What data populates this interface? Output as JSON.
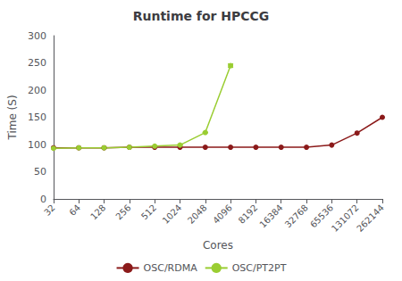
{
  "chart_data": {
    "type": "line",
    "title": "Runtime for HPCCG",
    "xlabel": "Cores",
    "ylabel": "Time (S)",
    "categories": [
      "32",
      "64",
      "128",
      "256",
      "512",
      "1024",
      "2048",
      "4096",
      "8192",
      "16384",
      "32768",
      "65536",
      "131072",
      "262144"
    ],
    "series": [
      {
        "name": "OSC/RDMA",
        "color": "#8B1A1A",
        "marker": "circle",
        "values": [
          94,
          94,
          94,
          95,
          95,
          95,
          95,
          95,
          95,
          95,
          95,
          99,
          121,
          150
        ]
      },
      {
        "name": "OSC/PT2PT",
        "color": "#9ACD32",
        "marker": "circle",
        "values": [
          93,
          94,
          94,
          95,
          97,
          99,
          122,
          245,
          null,
          null,
          null,
          null,
          null,
          null
        ],
        "errors": [
          0,
          0,
          0,
          0,
          0,
          0,
          0,
          3,
          null,
          null,
          null,
          null,
          null,
          null
        ]
      }
    ],
    "ylim": [
      0,
      300
    ],
    "yticks": [
      0,
      50,
      100,
      150,
      200,
      250,
      300
    ],
    "grid": false,
    "legend": "bottom"
  }
}
